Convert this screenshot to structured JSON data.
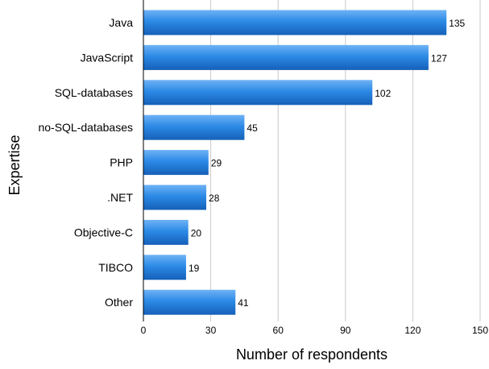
{
  "chart_data": {
    "type": "bar",
    "orientation": "horizontal",
    "title": "",
    "xlabel": "Number of respondents",
    "ylabel": "Expertise",
    "xlim": [
      0,
      150
    ],
    "x_ticks": [
      0,
      30,
      60,
      90,
      120,
      150
    ],
    "grid": true,
    "legend": "none",
    "categories": [
      "Java",
      "JavaScript",
      "SQL-databases",
      "no-SQL-databases",
      "PHP",
      ".NET",
      "Objective-C",
      "TIBCO",
      "Other"
    ],
    "values": [
      135,
      127,
      102,
      45,
      29,
      28,
      20,
      19,
      41
    ],
    "data_labels": [
      "135",
      "127",
      "102",
      "45",
      "29",
      "28",
      "20",
      "19",
      "41"
    ],
    "colors": {
      "bar_top": "#6fb2f5",
      "bar_mid": "#2c8ae6",
      "bar_bottom": "#1560b8",
      "grid": "#c8c8c8",
      "axis": "#000000",
      "text": "#000000"
    }
  }
}
